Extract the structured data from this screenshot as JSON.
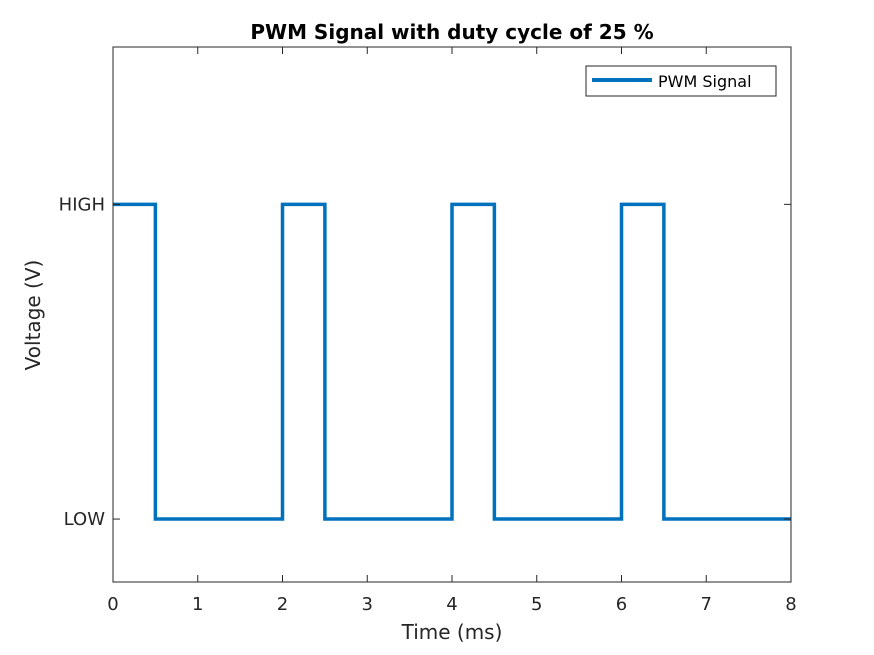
{
  "chart_data": {
    "type": "line",
    "title": "PWM Signal with duty cycle of 25 %",
    "xlabel": "Time (ms)",
    "ylabel": "Voltage (V)",
    "xlim": [
      0,
      8
    ],
    "ylim": [
      -0.2,
      1.5
    ],
    "x_ticks": [
      0,
      1,
      2,
      3,
      4,
      5,
      6,
      7,
      8
    ],
    "x_tick_labels": [
      "0",
      "1",
      "2",
      "3",
      "4",
      "5",
      "6",
      "7",
      "8"
    ],
    "y_ticks": [
      0,
      1
    ],
    "y_tick_labels": [
      "LOW",
      "HIGH"
    ],
    "grid": false,
    "legend_position": "top-right",
    "series": [
      {
        "name": "PWM Signal",
        "color": "#0072BD",
        "x": [
          0,
          0.5,
          0.5,
          2,
          2,
          2.5,
          2.5,
          4,
          4,
          4.5,
          4.5,
          6,
          6,
          6.5,
          6.5,
          8
        ],
        "y": [
          1,
          1,
          0,
          0,
          1,
          1,
          0,
          0,
          1,
          1,
          0,
          0,
          1,
          1,
          0,
          0
        ]
      }
    ]
  }
}
